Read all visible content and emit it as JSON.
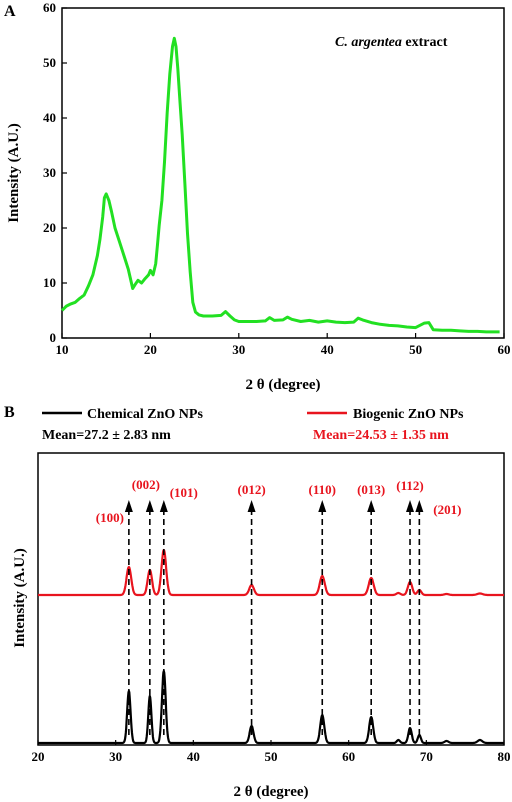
{
  "panels": {
    "a": {
      "letter": "A"
    },
    "b": {
      "letter": "B"
    }
  },
  "chart_data": [
    {
      "type": "line",
      "panel": "A",
      "title": "",
      "annotation": {
        "prefix": "C. argentea",
        "suffix": " extract"
      },
      "xlabel": "2 θ (degree)",
      "ylabel": "Intensity (A.U.)",
      "xlim": [
        10,
        60
      ],
      "ylim": [
        0,
        60
      ],
      "xticks": [
        10,
        20,
        30,
        40,
        50,
        60
      ],
      "yticks": [
        0,
        10,
        20,
        30,
        40,
        50,
        60
      ],
      "color": "#22e022",
      "series": [
        {
          "x": [
            10,
            10.5,
            11,
            11.5,
            12,
            12.5,
            13,
            13.5,
            14,
            14.3,
            14.6,
            14.8,
            15,
            15.3,
            15.6,
            16,
            16.5,
            17,
            17.5,
            18,
            18.3,
            18.6,
            19,
            19.4,
            19.8,
            20,
            20.3,
            20.6,
            20.8,
            21,
            21.3,
            21.6,
            21.9,
            22.2,
            22.5,
            22.7,
            22.9,
            23.1,
            23.3,
            23.6,
            23.9,
            24.2,
            24.5,
            24.8,
            25.1,
            25.5,
            26,
            27,
            28,
            28.5,
            29,
            29.5,
            30,
            31,
            32,
            33,
            33.5,
            34,
            35,
            35.5,
            36,
            37,
            38,
            39,
            40,
            41,
            42,
            43,
            43.5,
            44,
            45,
            46,
            47,
            48,
            49,
            50,
            51,
            51.5,
            52,
            53,
            54,
            55,
            56,
            57,
            58,
            59,
            59.5
          ],
          "y": [
            5,
            5.8,
            6.2,
            6.5,
            7.2,
            7.8,
            9.5,
            11.5,
            15,
            18,
            22,
            25.5,
            26.2,
            25,
            23,
            20,
            17.5,
            15,
            12.5,
            9,
            9.8,
            10.5,
            10,
            10.8,
            11.5,
            12.3,
            11.5,
            13.5,
            17,
            20.5,
            25,
            32,
            41,
            48,
            53,
            54.5,
            53,
            49,
            44,
            37,
            28,
            19,
            12,
            6.5,
            4.7,
            4.2,
            4,
            4,
            4.1,
            4.8,
            4,
            3.3,
            3,
            3,
            3,
            3.1,
            3.7,
            3.2,
            3.3,
            3.8,
            3.4,
            3,
            3.2,
            2.9,
            3.1,
            2.9,
            2.8,
            2.9,
            3.6,
            3.3,
            2.8,
            2.5,
            2.3,
            2.2,
            2,
            1.9,
            2.7,
            2.8,
            1.5,
            1.4,
            1.4,
            1.3,
            1.2,
            1.2,
            1.1,
            1.1,
            1.1
          ]
        }
      ]
    },
    {
      "type": "line",
      "panel": "B",
      "title": "",
      "xlabel": "2 θ (degree)",
      "ylabel": "Intensity (A.U.)",
      "xlim": [
        20,
        80
      ],
      "xticks": [
        20,
        30,
        40,
        50,
        60,
        70,
        80
      ],
      "legend_position": "top",
      "series": [
        {
          "name": "Chemical ZnO NPs",
          "mean": "Mean=27.2 ± 2.83 nm",
          "color": "#000000",
          "baseline": 2,
          "peaks": [
            [
              31.7,
              52,
              0.22
            ],
            [
              34.4,
              47,
              0.2
            ],
            [
              36.2,
              72,
              0.24
            ],
            [
              47.5,
              17,
              0.25
            ],
            [
              56.6,
              28,
              0.26
            ],
            [
              62.9,
              26,
              0.26
            ],
            [
              66.4,
              3,
              0.2
            ],
            [
              67.9,
              15,
              0.22
            ],
            [
              69.1,
              8,
              0.2
            ],
            [
              72.6,
              2,
              0.25
            ],
            [
              76.9,
              3,
              0.3
            ]
          ]
        },
        {
          "name": "Biogenic ZnO NPs",
          "mean": "Mean=24.53 ± 1.35 nm",
          "color": "#e8141e",
          "baseline": 150,
          "peaks": [
            [
              31.7,
              28,
              0.3
            ],
            [
              34.4,
              25,
              0.28
            ],
            [
              36.2,
              45,
              0.3
            ],
            [
              47.5,
              10,
              0.3
            ],
            [
              56.6,
              19,
              0.32
            ],
            [
              62.9,
              17,
              0.32
            ],
            [
              66.4,
              2,
              0.25
            ],
            [
              67.9,
              13,
              0.28
            ],
            [
              69.1,
              5,
              0.25
            ],
            [
              72.6,
              1,
              0.3
            ],
            [
              76.9,
              1.5,
              0.35
            ]
          ]
        }
      ],
      "reflections": [
        {
          "hkl": "(100)",
          "x": 31.7
        },
        {
          "hkl": "(002)",
          "x": 34.4
        },
        {
          "hkl": "(101)",
          "x": 36.2
        },
        {
          "hkl": "(012)",
          "x": 47.5
        },
        {
          "hkl": "(110)",
          "x": 56.6
        },
        {
          "hkl": "(013)",
          "x": 62.9
        },
        {
          "hkl": "(112)",
          "x": 67.9
        },
        {
          "hkl": "(201)",
          "x": 69.1
        }
      ],
      "label_color": "#e8141e"
    }
  ]
}
